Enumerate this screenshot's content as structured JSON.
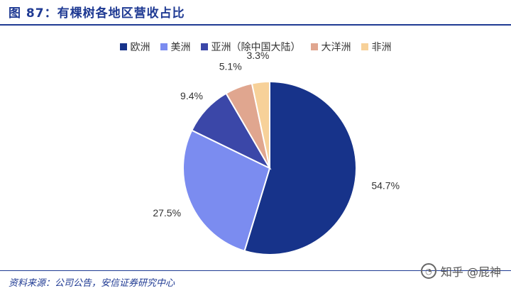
{
  "header": {
    "title": "图 87：有棵树各地区营收占比"
  },
  "footer": {
    "source": "资料来源：公司公告，安信证券研究中心"
  },
  "watermark": {
    "text": "知乎 @屁神",
    "icon": "wechat-icon"
  },
  "colors": {
    "title": "#1f3a93",
    "series": [
      "#17338a",
      "#7b8cf0",
      "#3b47a8",
      "#e0a68f",
      "#f7d199"
    ]
  },
  "chart_data": {
    "type": "pie",
    "title": "",
    "legend_position": "top",
    "start_angle_deg": 0,
    "direction": "clockwise",
    "slices": [
      {
        "name": "欧洲",
        "value": 54.7,
        "label": "54.7%"
      },
      {
        "name": "美洲",
        "value": 27.5,
        "label": "27.5%"
      },
      {
        "name": "亚洲（除中国大陆）",
        "value": 9.4,
        "label": "9.4%"
      },
      {
        "name": "大洋洲",
        "value": 5.1,
        "label": "5.1%"
      },
      {
        "name": "非洲",
        "value": 3.3,
        "label": "3.3%"
      }
    ]
  }
}
